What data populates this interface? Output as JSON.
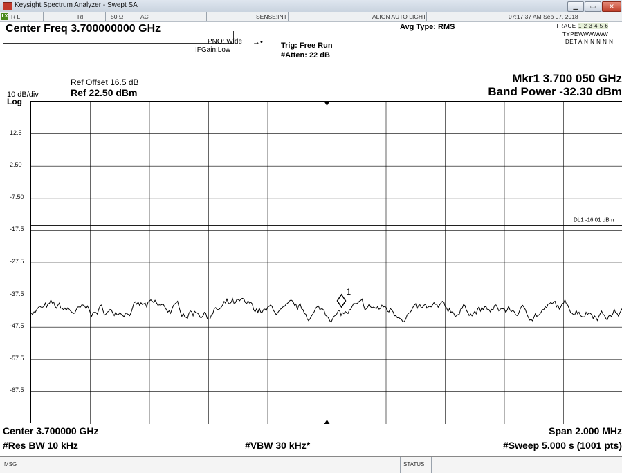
{
  "window": {
    "title": "Keysight Spectrum Analyzer - Swept SA"
  },
  "status_bar": {
    "rl": "R L",
    "rf": "RF",
    "impedance": "50 Ω",
    "coupling": "AC",
    "sense": "SENSE:INT",
    "align": "ALIGN AUTO LIGHT",
    "datetime": "07:17:37 AM Sep 07, 2018"
  },
  "header": {
    "center_freq": "Center Freq 3.700000000 GHz",
    "pno": "PNO: Wide",
    "ifgain": "IFGain:Low",
    "trig": "Trig: Free Run",
    "atten": "#Atten: 22 dB",
    "avg_type": "Avg Type: RMS",
    "trace_label": "TRACE",
    "trace_nums": "1 2 3 4 5 6",
    "type_label": "TYPE",
    "type_value": "WWWWWW",
    "det_label": "DET",
    "det_value": "A N N N N N",
    "ref_offset": "Ref Offset 16.5 dB",
    "scale": "10 dB/div",
    "ref_level": "Ref 22.50 dBm",
    "log": "Log",
    "marker_readout": "Mkr1 3.700 050 GHz",
    "band_power": "Band Power -32.30 dBm"
  },
  "plot": {
    "y_ticks": [
      "12.5",
      "2.50",
      "-7.50",
      "-17.5",
      "-27.5",
      "-37.5",
      "-47.5",
      "-57.5",
      "-67.5"
    ],
    "display_line_label": "DL1 -16.01 dBm",
    "marker_label": "1",
    "trace_color": "#000000",
    "grid_color": "#000000",
    "ref_level_dbm": 22.5,
    "db_per_div": 10,
    "display_line_dbm": -16.01,
    "marker_level_dbm": -39.3,
    "noise_floor_dbm": -42.2
  },
  "footer": {
    "center": "Center 3.700000 GHz",
    "span": "Span 2.000 MHz",
    "res_bw": "#Res BW 10 kHz",
    "vbw": "#VBW 30 kHz*",
    "sweep": "#Sweep  5.000 s (1001 pts)"
  },
  "msg": {
    "msg_label": "MSG",
    "status_label": "STATUS"
  }
}
